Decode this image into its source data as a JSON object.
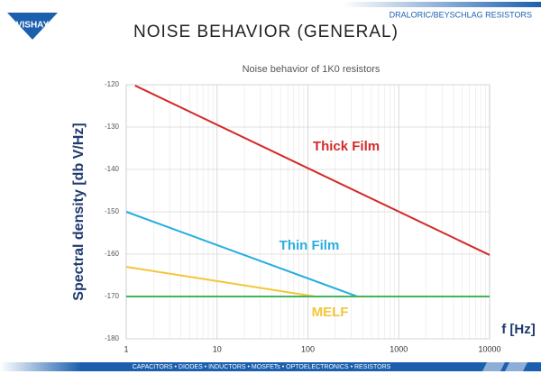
{
  "header": {
    "logo": "VISHAY",
    "brand": "DRALORIC/BEYSCHLAG RESISTORS",
    "title": "NOISE BEHAVIOR (GENERAL)"
  },
  "footer": "CAPACITORS • DIODES • INDUCTORS • MOSFETs • OPTOELECTRONICS • RESISTORS",
  "chart_data": {
    "type": "line",
    "title": "Noise behavior of 1K0 resistors",
    "y_label": "Spectral density [db V/Hz]",
    "x_label": "f [Hz]",
    "xscale": "log",
    "xlim": [
      1,
      10000
    ],
    "xticks": [
      1,
      10,
      100,
      1000,
      10000
    ],
    "ylim": [
      -180,
      -120
    ],
    "yticks": [
      -180,
      -170,
      -160,
      -150,
      -140,
      -130,
      -120
    ],
    "grid": true,
    "series": [
      {
        "name": "Thick Film",
        "color": "#d42a2a",
        "x": [
          1.25,
          10000
        ],
        "values": [
          -120.2,
          -160.2
        ]
      },
      {
        "name": "Thin Film",
        "color": "#29aee0",
        "x": [
          1,
          350
        ],
        "values": [
          -150,
          -170
        ]
      },
      {
        "name": "MELF",
        "color": "#f5c53a",
        "x": [
          1,
          120
        ],
        "values": [
          -163,
          -170
        ]
      },
      {
        "color": "#3fb65a",
        "x": [
          1,
          10000
        ],
        "values": [
          -170,
          -170
        ]
      }
    ]
  }
}
